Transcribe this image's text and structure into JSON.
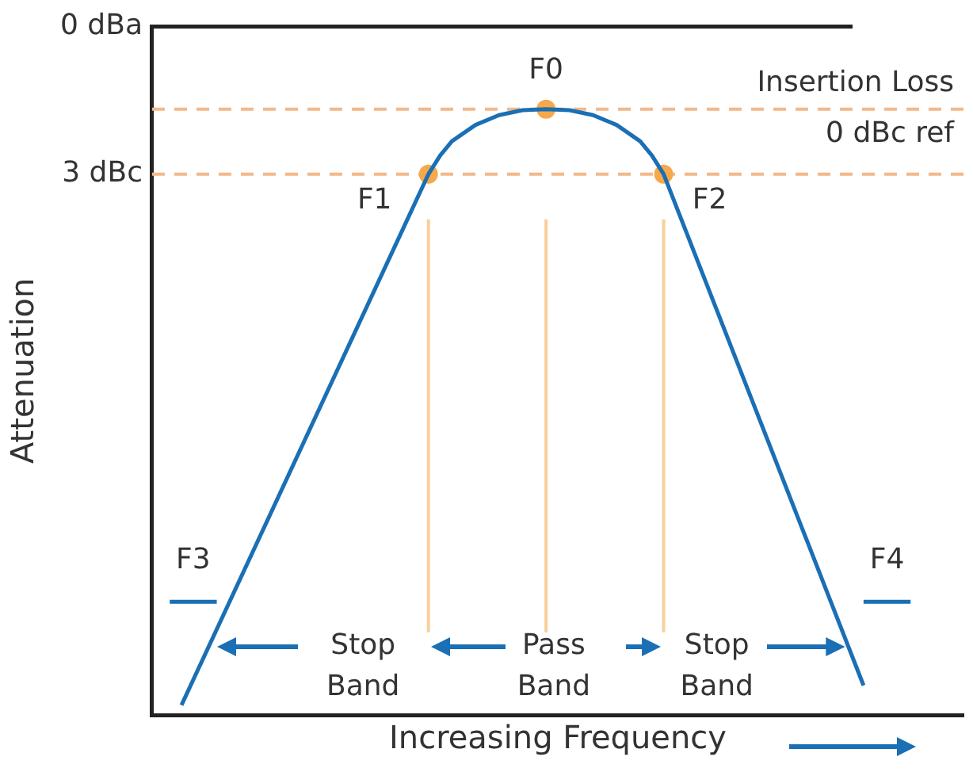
{
  "chart_data": {
    "type": "line",
    "xlabel": "Increasing Frequency",
    "ylabel": "Attenuation",
    "categories": [
      null,
      null,
      null,
      null,
      null,
      null,
      null,
      null,
      null,
      null,
      null,
      null,
      null,
      null,
      null,
      null,
      null,
      null,
      null,
      null,
      null,
      null,
      null,
      null,
      null,
      null,
      null,
      null,
      null,
      null,
      null,
      null,
      null,
      null,
      null,
      null,
      null,
      null,
      null,
      null,
      null,
      null,
      null,
      null,
      null,
      null,
      null,
      null,
      null,
      null,
      null,
      null,
      null,
      null,
      null,
      null,
      null,
      null,
      null,
      null,
      null,
      null,
      null,
      null,
      null,
      null,
      null,
      null,
      null
    ],
    "ylim": [
      14,
      0
    ],
    "yticks": [
      {
        "value": 0,
        "label": "0 dBa"
      },
      {
        "value": 3,
        "label": "3 dBc"
      }
    ],
    "tick_labels": "y",
    "grid": false,
    "legend": false,
    "series": [
      {
        "color": "#1a6fb5",
        "marker": "none",
        "values": [
          null,
          null,
          13.8,
          null,
          null,
          null,
          null,
          null,
          null,
          null,
          null,
          null,
          null,
          null,
          null,
          null,
          null,
          null,
          null,
          null,
          null,
          null,
          null,
          3,
          2.62,
          2.33,
          null,
          2.0,
          null,
          1.8,
          null,
          1.7,
          null,
          1.68,
          null,
          1.7,
          null,
          1.8,
          null,
          2.0,
          null,
          2.33,
          2.62,
          3,
          null,
          null,
          null,
          null,
          null,
          null,
          null,
          null,
          null,
          null,
          null,
          null,
          null,
          null,
          null,
          null,
          13.4,
          null,
          null,
          null,
          null,
          null,
          null,
          null,
          null
        ]
      },
      {
        "name": "F3",
        "color": "#1a6fb5",
        "marker": "none",
        "values": [
          null,
          11.7,
          null,
          null,
          null,
          11.7,
          null,
          null,
          null,
          null,
          null,
          null,
          null,
          null,
          null,
          null,
          null,
          null,
          null,
          null,
          null,
          null,
          null,
          null,
          null,
          null,
          null,
          null,
          null,
          null,
          null,
          null,
          null,
          null,
          null,
          null,
          null,
          null,
          null,
          null,
          null,
          null,
          null,
          null,
          null,
          null,
          null,
          null,
          null,
          null,
          null,
          null,
          null,
          null,
          null,
          null,
          null,
          null,
          null,
          null,
          null,
          null,
          null,
          null,
          null,
          null,
          null,
          null,
          null
        ]
      },
      {
        "name": "F4",
        "color": "#1a6fb5",
        "marker": "none",
        "values": [
          null,
          null,
          null,
          null,
          null,
          null,
          null,
          null,
          null,
          null,
          null,
          null,
          null,
          null,
          null,
          null,
          null,
          null,
          null,
          null,
          null,
          null,
          null,
          null,
          null,
          null,
          null,
          null,
          null,
          null,
          null,
          null,
          null,
          null,
          null,
          null,
          null,
          null,
          null,
          null,
          null,
          null,
          null,
          null,
          null,
          null,
          null,
          null,
          null,
          null,
          null,
          null,
          null,
          null,
          null,
          null,
          null,
          null,
          null,
          null,
          11.7,
          null,
          null,
          null,
          11.7,
          null,
          null,
          null,
          null
        ]
      },
      {
        "name": "F1",
        "color": "#f6a84a",
        "marker": "circle",
        "values": [
          null,
          null,
          null,
          null,
          null,
          null,
          null,
          null,
          null,
          null,
          null,
          null,
          null,
          null,
          null,
          null,
          null,
          null,
          null,
          null,
          null,
          null,
          null,
          3,
          null,
          null,
          null,
          null,
          null,
          null,
          null,
          null,
          null,
          null,
          null,
          null,
          null,
          null,
          null,
          null,
          null,
          null,
          null,
          null,
          null,
          null,
          null,
          null,
          null,
          null,
          null,
          null,
          null,
          null,
          null,
          null,
          null,
          null,
          null,
          null,
          null,
          null,
          null,
          null,
          null,
          null,
          null,
          null,
          null
        ]
      },
      {
        "name": "F0",
        "color": "#f6a84a",
        "marker": "circle",
        "values": [
          null,
          null,
          null,
          null,
          null,
          null,
          null,
          null,
          null,
          null,
          null,
          null,
          null,
          null,
          null,
          null,
          null,
          null,
          null,
          null,
          null,
          null,
          null,
          null,
          null,
          null,
          null,
          null,
          null,
          null,
          null,
          null,
          null,
          1.68,
          null,
          null,
          null,
          null,
          null,
          null,
          null,
          null,
          null,
          null,
          null,
          null,
          null,
          null,
          null,
          null,
          null,
          null,
          null,
          null,
          null,
          null,
          null,
          null,
          null,
          null,
          null,
          null,
          null,
          null,
          null,
          null,
          null,
          null,
          null
        ]
      },
      {
        "name": "F2",
        "color": "#f6a84a",
        "marker": "circle",
        "values": [
          null,
          null,
          null,
          null,
          null,
          null,
          null,
          null,
          null,
          null,
          null,
          null,
          null,
          null,
          null,
          null,
          null,
          null,
          null,
          null,
          null,
          null,
          null,
          null,
          null,
          null,
          null,
          null,
          null,
          null,
          null,
          null,
          null,
          null,
          null,
          null,
          null,
          null,
          null,
          null,
          null,
          null,
          null,
          3,
          null,
          null,
          null,
          null,
          null,
          null,
          null,
          null,
          null,
          null,
          null,
          null,
          null,
          null,
          null,
          null,
          null,
          null,
          null,
          null,
          null,
          null,
          null,
          null,
          null
        ]
      }
    ],
    "ref_lines": [
      {
        "axis": "y",
        "value": 1.68,
        "label": "Insertion Loss\n0 dBc ref",
        "color": "#f2b98b",
        "line_style": "dashed"
      },
      {
        "axis": "y",
        "value": 3,
        "color": "#f2b98b",
        "line_style": "dashed"
      }
    ],
    "annotations": [
      "Stop\nBand",
      "Pass\nBand",
      "Stop\nBand"
    ]
  }
}
